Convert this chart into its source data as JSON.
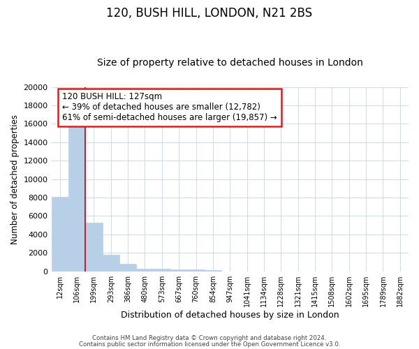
{
  "title1": "120, BUSH HILL, LONDON, N21 2BS",
  "title2": "Size of property relative to detached houses in London",
  "xlabel": "Distribution of detached houses by size in London",
  "ylabel": "Number of detached properties",
  "categories": [
    "12sqm",
    "106sqm",
    "199sqm",
    "293sqm",
    "386sqm",
    "480sqm",
    "573sqm",
    "667sqm",
    "760sqm",
    "854sqm",
    "947sqm",
    "1041sqm",
    "1134sqm",
    "1228sqm",
    "1321sqm",
    "1415sqm",
    "1508sqm",
    "1602sqm",
    "1695sqm",
    "1789sqm",
    "1882sqm"
  ],
  "values": [
    8100,
    16500,
    5300,
    1800,
    800,
    300,
    250,
    200,
    175,
    150,
    0,
    0,
    0,
    0,
    0,
    0,
    0,
    0,
    0,
    0,
    0
  ],
  "bar_color": "#b8cfe8",
  "bar_edge_color": "#b8cfe8",
  "red_line_x": 1.5,
  "annotation_text": "120 BUSH HILL: 127sqm\n← 39% of detached houses are smaller (12,782)\n61% of semi-detached houses are larger (19,857) →",
  "annotation_box_color": "white",
  "annotation_box_edge_color": "#cc2222",
  "red_line_color": "#cc2222",
  "ylim": [
    0,
    20000
  ],
  "yticks": [
    0,
    2000,
    4000,
    6000,
    8000,
    10000,
    12000,
    14000,
    16000,
    18000,
    20000
  ],
  "footer1": "Contains HM Land Registry data © Crown copyright and database right 2024.",
  "footer2": "Contains public sector information licensed under the Open Government Licence v3.0.",
  "background_color": "#ffffff",
  "plot_bg_color": "#ffffff",
  "grid_color": "#d0dce8",
  "title1_fontsize": 12,
  "title2_fontsize": 10
}
